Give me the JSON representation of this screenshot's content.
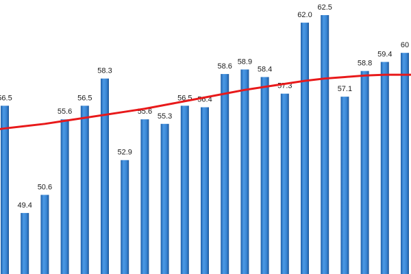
{
  "chart_data": {
    "type": "bar",
    "values": [
      56.5,
      49.4,
      50.6,
      55.6,
      56.5,
      58.3,
      52.9,
      55.6,
      55.3,
      56.5,
      56.4,
      58.6,
      58.9,
      58.4,
      57.3,
      62.0,
      62.5,
      57.1,
      58.8,
      59.4,
      60.0
    ],
    "value_labels": [
      "56.5",
      "49.4",
      "50.6",
      "55.6",
      "56.5",
      "58.3",
      "52.9",
      "55.6",
      "55.3",
      "56.5",
      "56.4",
      "58.6",
      "58.9",
      "58.4",
      "57.3",
      "62.0",
      "62.5",
      "57.1",
      "58.8",
      "59.4",
      "60"
    ],
    "trend": {
      "type": "polynomial",
      "color": "#e8191a",
      "values": [
        55.0,
        55.15,
        55.3,
        55.5,
        55.7,
        55.9,
        56.1,
        56.3,
        56.55,
        56.8,
        57.05,
        57.3,
        57.55,
        57.75,
        57.95,
        58.15,
        58.3,
        58.4,
        58.5,
        58.55,
        58.55
      ]
    },
    "series_color": "#3c8ad6",
    "title": "",
    "xlabel": "",
    "ylabel": "",
    "ylim": [
      44,
      63.5
    ],
    "grid": false,
    "legend": "none"
  }
}
